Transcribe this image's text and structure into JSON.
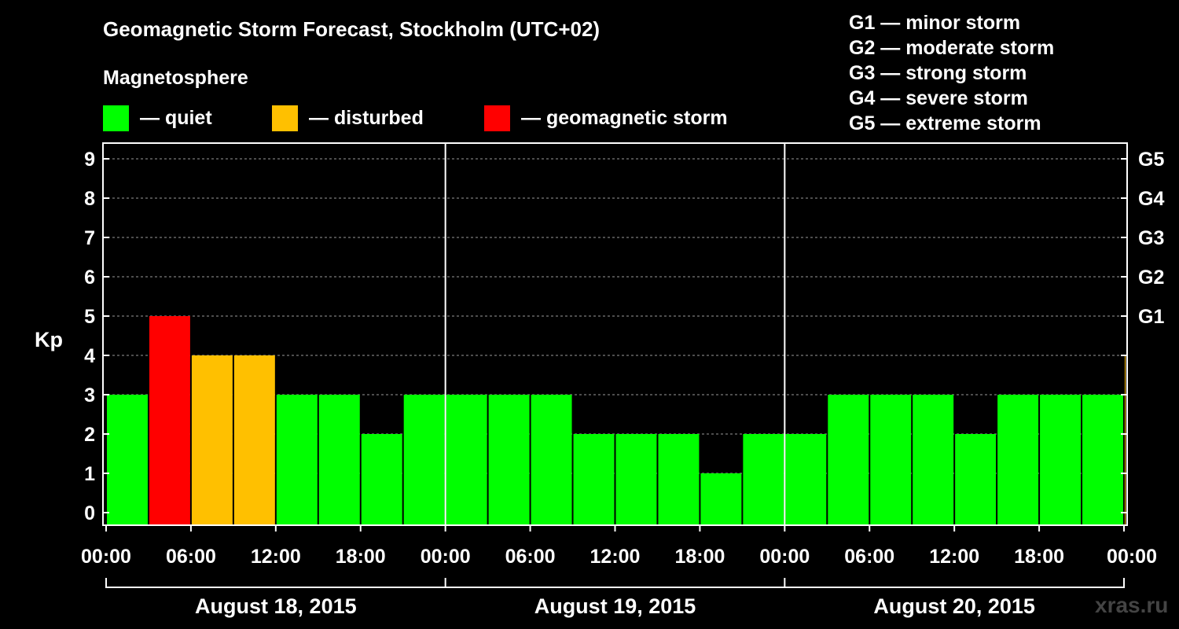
{
  "title": "Geomagnetic Storm Forecast, Stockholm (UTC+02)",
  "magnetosphere_label": "Magnetosphere",
  "legend": [
    {
      "label": "— quiet",
      "color": "#00ff00"
    },
    {
      "label": "— disturbed",
      "color": "#ffc000"
    },
    {
      "label": "— geomagnetic storm",
      "color": "#ff0000"
    }
  ],
  "g_scale": [
    "G1 — minor storm",
    "G2 — moderate storm",
    "G3 — strong storm",
    "G4 — severe storm",
    "G5 — extreme storm"
  ],
  "watermark": "xras.ru",
  "chart_data": {
    "type": "bar",
    "ylabel": "Kp",
    "ylim": [
      0,
      9
    ],
    "yticks": [
      0,
      1,
      2,
      3,
      4,
      5,
      6,
      7,
      8,
      9
    ],
    "right_ticks": [
      {
        "value": 5,
        "label": "G1"
      },
      {
        "value": 6,
        "label": "G2"
      },
      {
        "value": 7,
        "label": "G3"
      },
      {
        "value": 8,
        "label": "G4"
      },
      {
        "value": 9,
        "label": "G5"
      }
    ],
    "xtick_labels": [
      "00:00",
      "06:00",
      "12:00",
      "18:00",
      "00:00",
      "06:00",
      "12:00",
      "18:00",
      "00:00",
      "06:00",
      "12:00",
      "18:00",
      "00:00"
    ],
    "days": [
      "August 18, 2015",
      "August 19, 2015",
      "August 20, 2015"
    ],
    "interval_hours": 3,
    "grid": "horizontal dashed",
    "colors": {
      "quiet": "#00ff00",
      "disturbed": "#ffc000",
      "storm": "#ff0000"
    },
    "values": [
      3,
      5,
      4,
      4,
      3,
      3,
      2,
      3,
      3,
      3,
      3,
      2,
      2,
      2,
      1,
      2,
      2,
      3,
      3,
      3,
      2,
      3,
      3,
      3,
      4
    ]
  }
}
